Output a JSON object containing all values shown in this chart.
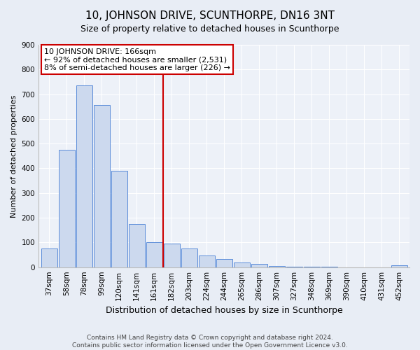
{
  "title": "10, JOHNSON DRIVE, SCUNTHORPE, DN16 3NT",
  "subtitle": "Size of property relative to detached houses in Scunthorpe",
  "xlabel": "Distribution of detached houses by size in Scunthorpe",
  "ylabel": "Number of detached properties",
  "bar_labels": [
    "37sqm",
    "58sqm",
    "78sqm",
    "99sqm",
    "120sqm",
    "141sqm",
    "161sqm",
    "182sqm",
    "203sqm",
    "224sqm",
    "244sqm",
    "265sqm",
    "286sqm",
    "307sqm",
    "327sqm",
    "348sqm",
    "369sqm",
    "390sqm",
    "410sqm",
    "431sqm",
    "452sqm"
  ],
  "bar_values": [
    75,
    475,
    735,
    655,
    390,
    175,
    100,
    95,
    75,
    47,
    32,
    18,
    12,
    5,
    3,
    2,
    1,
    0,
    0,
    0,
    8
  ],
  "bar_color": "#ccd9ee",
  "bar_edge_color": "#5b8dd9",
  "vline_x": 6.5,
  "vline_color": "#cc0000",
  "annotation_title": "10 JOHNSON DRIVE: 166sqm",
  "annotation_line1": "← 92% of detached houses are smaller (2,531)",
  "annotation_line2": "8% of semi-detached houses are larger (226) →",
  "annotation_box_color": "#cc0000",
  "ylim": [
    0,
    900
  ],
  "yticks": [
    0,
    100,
    200,
    300,
    400,
    500,
    600,
    700,
    800,
    900
  ],
  "footer_line1": "Contains HM Land Registry data © Crown copyright and database right 2024.",
  "footer_line2": "Contains public sector information licensed under the Open Government Licence v3.0.",
  "bg_color": "#e8edf5",
  "plot_bg_color": "#edf1f8",
  "grid_color": "#ffffff",
  "title_fontsize": 11,
  "subtitle_fontsize": 9,
  "ylabel_fontsize": 8,
  "xlabel_fontsize": 9,
  "tick_fontsize": 7.5,
  "annotation_fontsize": 8,
  "footer_fontsize": 6.5
}
